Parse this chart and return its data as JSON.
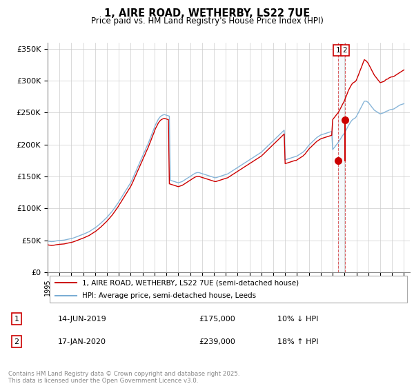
{
  "title": "1, AIRE ROAD, WETHERBY, LS22 7UE",
  "subtitle": "Price paid vs. HM Land Registry's House Price Index (HPI)",
  "ylim": [
    0,
    360000
  ],
  "yticks": [
    0,
    50000,
    100000,
    150000,
    200000,
    250000,
    300000,
    350000
  ],
  "ytick_labels": [
    "£0",
    "£50K",
    "£100K",
    "£150K",
    "£200K",
    "£250K",
    "£300K",
    "£350K"
  ],
  "legend_entries": [
    "1, AIRE ROAD, WETHERBY, LS22 7UE (semi-detached house)",
    "HPI: Average price, semi-detached house, Leeds"
  ],
  "line1_color": "#cc0000",
  "line2_color": "#7aadd4",
  "transaction1": {
    "num": 1,
    "date": "14-JUN-2019",
    "price": "£175,000",
    "change": "10% ↓ HPI"
  },
  "transaction2": {
    "num": 2,
    "date": "17-JAN-2020",
    "price": "£239,000",
    "change": "18% ↑ HPI"
  },
  "footnote": "Contains HM Land Registry data © Crown copyright and database right 2025.\nThis data is licensed under the Open Government Licence v3.0.",
  "marker1_x": 2019.44,
  "marker1_y": 175000,
  "marker2_x": 2020.04,
  "marker2_y": 239000,
  "xlim_start": 1995,
  "xlim_end": 2025.5,
  "hpi_x": [
    1995.0,
    1995.08,
    1995.17,
    1995.25,
    1995.33,
    1995.42,
    1995.5,
    1995.58,
    1995.67,
    1995.75,
    1995.83,
    1995.92,
    1996.0,
    1996.08,
    1996.17,
    1996.25,
    1996.33,
    1996.42,
    1996.5,
    1996.58,
    1996.67,
    1996.75,
    1996.83,
    1996.92,
    1997.0,
    1997.08,
    1997.17,
    1997.25,
    1997.33,
    1997.42,
    1997.5,
    1997.58,
    1997.67,
    1997.75,
    1997.83,
    1997.92,
    1998.0,
    1998.08,
    1998.17,
    1998.25,
    1998.33,
    1998.42,
    1998.5,
    1998.58,
    1998.67,
    1998.75,
    1998.83,
    1998.92,
    1999.0,
    1999.08,
    1999.17,
    1999.25,
    1999.33,
    1999.42,
    1999.5,
    1999.58,
    1999.67,
    1999.75,
    1999.83,
    1999.92,
    2000.0,
    2000.08,
    2000.17,
    2000.25,
    2000.33,
    2000.42,
    2000.5,
    2000.58,
    2000.67,
    2000.75,
    2000.83,
    2000.92,
    2001.0,
    2001.08,
    2001.17,
    2001.25,
    2001.33,
    2001.42,
    2001.5,
    2001.58,
    2001.67,
    2001.75,
    2001.83,
    2001.92,
    2002.0,
    2002.08,
    2002.17,
    2002.25,
    2002.33,
    2002.42,
    2002.5,
    2002.58,
    2002.67,
    2002.75,
    2002.83,
    2002.92,
    2003.0,
    2003.08,
    2003.17,
    2003.25,
    2003.33,
    2003.42,
    2003.5,
    2003.58,
    2003.67,
    2003.75,
    2003.83,
    2003.92,
    2004.0,
    2004.08,
    2004.17,
    2004.25,
    2004.33,
    2004.42,
    2004.5,
    2004.58,
    2004.67,
    2004.75,
    2004.83,
    2004.92,
    2005.0,
    2005.08,
    2005.17,
    2005.25,
    2005.33,
    2005.42,
    2005.5,
    2005.58,
    2005.67,
    2005.75,
    2005.83,
    2005.92,
    2006.0,
    2006.08,
    2006.17,
    2006.25,
    2006.33,
    2006.42,
    2006.5,
    2006.58,
    2006.67,
    2006.75,
    2006.83,
    2006.92,
    2007.0,
    2007.08,
    2007.17,
    2007.25,
    2007.33,
    2007.42,
    2007.5,
    2007.58,
    2007.67,
    2007.75,
    2007.83,
    2007.92,
    2008.0,
    2008.08,
    2008.17,
    2008.25,
    2008.33,
    2008.42,
    2008.5,
    2008.58,
    2008.67,
    2008.75,
    2008.83,
    2008.92,
    2009.0,
    2009.08,
    2009.17,
    2009.25,
    2009.33,
    2009.42,
    2009.5,
    2009.58,
    2009.67,
    2009.75,
    2009.83,
    2009.92,
    2010.0,
    2010.08,
    2010.17,
    2010.25,
    2010.33,
    2010.42,
    2010.5,
    2010.58,
    2010.67,
    2010.75,
    2010.83,
    2010.92,
    2011.0,
    2011.08,
    2011.17,
    2011.25,
    2011.33,
    2011.42,
    2011.5,
    2011.58,
    2011.67,
    2011.75,
    2011.83,
    2011.92,
    2012.0,
    2012.08,
    2012.17,
    2012.25,
    2012.33,
    2012.42,
    2012.5,
    2012.58,
    2012.67,
    2012.75,
    2012.83,
    2012.92,
    2013.0,
    2013.08,
    2013.17,
    2013.25,
    2013.33,
    2013.42,
    2013.5,
    2013.58,
    2013.67,
    2013.75,
    2013.83,
    2013.92,
    2014.0,
    2014.08,
    2014.17,
    2014.25,
    2014.33,
    2014.42,
    2014.5,
    2014.58,
    2014.67,
    2014.75,
    2014.83,
    2014.92,
    2015.0,
    2015.08,
    2015.17,
    2015.25,
    2015.33,
    2015.42,
    2015.5,
    2015.58,
    2015.67,
    2015.75,
    2015.83,
    2015.92,
    2016.0,
    2016.08,
    2016.17,
    2016.25,
    2016.33,
    2016.42,
    2016.5,
    2016.58,
    2016.67,
    2016.75,
    2016.83,
    2016.92,
    2017.0,
    2017.08,
    2017.17,
    2017.25,
    2017.33,
    2017.42,
    2017.5,
    2017.58,
    2017.67,
    2017.75,
    2017.83,
    2017.92,
    2018.0,
    2018.08,
    2018.17,
    2018.25,
    2018.33,
    2018.42,
    2018.5,
    2018.58,
    2018.67,
    2018.75,
    2018.83,
    2018.92,
    2019.0,
    2019.08,
    2019.17,
    2019.25,
    2019.33,
    2019.42,
    2019.5,
    2019.58,
    2019.67,
    2019.75,
    2019.83,
    2019.92,
    2020.0,
    2020.08,
    2020.17,
    2020.25,
    2020.33,
    2020.42,
    2020.5,
    2020.58,
    2020.67,
    2020.75,
    2020.83,
    2020.92,
    2021.0,
    2021.08,
    2021.17,
    2021.25,
    2021.33,
    2021.42,
    2021.5,
    2021.58,
    2021.67,
    2021.75,
    2021.83,
    2021.92,
    2022.0,
    2022.08,
    2022.17,
    2022.25,
    2022.33,
    2022.42,
    2022.5,
    2022.58,
    2022.67,
    2022.75,
    2022.83,
    2022.92,
    2023.0,
    2023.08,
    2023.17,
    2023.25,
    2023.33,
    2023.42,
    2023.5,
    2023.58,
    2023.67,
    2023.75,
    2023.83,
    2023.92,
    2024.0,
    2024.08,
    2024.17,
    2024.25,
    2024.33,
    2024.42,
    2024.5,
    2024.58,
    2024.67,
    2024.75,
    2024.83,
    2024.92,
    2025.0
  ],
  "hpi_y": [
    49000,
    48500,
    48200,
    48000,
    47800,
    47900,
    48100,
    48400,
    48700,
    49000,
    49200,
    49400,
    49600,
    49700,
    49800,
    49900,
    50100,
    50300,
    50600,
    51000,
    51400,
    51700,
    52000,
    52300,
    52600,
    53000,
    53500,
    54000,
    54600,
    55200,
    55800,
    56400,
    57000,
    57600,
    58200,
    58800,
    59400,
    60000,
    60700,
    61400,
    62100,
    62800,
    63500,
    64500,
    65500,
    66500,
    67500,
    68500,
    69500,
    70500,
    71800,
    73100,
    74400,
    75700,
    77000,
    78500,
    80000,
    81500,
    83000,
    84500,
    86000,
    87800,
    89600,
    91400,
    93200,
    95000,
    97000,
    99200,
    101400,
    103600,
    105800,
    108000,
    110500,
    113000,
    115500,
    118000,
    120500,
    123000,
    125500,
    128000,
    130500,
    133000,
    135500,
    138000,
    140500,
    143500,
    147000,
    150500,
    154000,
    157500,
    161000,
    164500,
    168000,
    171500,
    175000,
    178500,
    182000,
    185500,
    189000,
    192500,
    196000,
    199500,
    203000,
    207000,
    211000,
    215000,
    219000,
    223000,
    227000,
    231000,
    234000,
    237000,
    240000,
    242000,
    244000,
    245000,
    246000,
    246500,
    247000,
    246500,
    246000,
    245500,
    245000,
    244500,
    144000,
    143500,
    143000,
    142500,
    142000,
    141500,
    141000,
    140500,
    140000,
    140500,
    141000,
    141500,
    142000,
    143000,
    144000,
    145000,
    146000,
    147000,
    148000,
    149000,
    150000,
    151000,
    152000,
    153000,
    154000,
    155000,
    155500,
    156000,
    156000,
    156000,
    155500,
    155000,
    154500,
    154000,
    153500,
    153000,
    152500,
    152000,
    151500,
    151000,
    150500,
    150000,
    149500,
    149000,
    148500,
    148000,
    148000,
    148500,
    149000,
    149500,
    150000,
    150500,
    151000,
    151500,
    152000,
    152500,
    153000,
    153500,
    154000,
    155000,
    156000,
    157000,
    158000,
    159000,
    160000,
    161000,
    162000,
    163000,
    164000,
    165000,
    166000,
    167000,
    168000,
    169000,
    170000,
    171000,
    172000,
    173000,
    174000,
    175000,
    176000,
    177000,
    178000,
    179000,
    180000,
    181000,
    182000,
    183000,
    184000,
    185000,
    186000,
    187000,
    188000,
    189500,
    191000,
    192500,
    194000,
    195500,
    197000,
    198500,
    200000,
    201500,
    203000,
    204500,
    206000,
    207500,
    209000,
    210500,
    212000,
    213500,
    215000,
    216500,
    218000,
    219500,
    221000,
    222500,
    176000,
    176500,
    177000,
    177500,
    178000,
    178500,
    179000,
    179500,
    180000,
    180500,
    181000,
    181500,
    182000,
    183000,
    184000,
    185000,
    186000,
    187000,
    188000,
    189500,
    191000,
    193000,
    195000,
    197000,
    199000,
    200500,
    202000,
    203500,
    205000,
    206500,
    208000,
    209500,
    211000,
    212000,
    213000,
    214000,
    215000,
    215500,
    216000,
    216500,
    217000,
    217500,
    218000,
    218500,
    219000,
    219500,
    220000,
    220500,
    192000,
    194000,
    196000,
    198000,
    200000,
    202000,
    204000,
    206500,
    209000,
    211500,
    214000,
    216000,
    218000,
    221000,
    224000,
    227000,
    230000,
    232500,
    235000,
    237000,
    239000,
    240000,
    241000,
    242000,
    244000,
    247000,
    250000,
    253000,
    256000,
    259000,
    262000,
    265000,
    268000,
    268000,
    268000,
    267000,
    266000,
    264000,
    262000,
    260000,
    258000,
    256000,
    254000,
    253000,
    252000,
    251000,
    250000,
    249000,
    248000,
    248500,
    249000,
    249500,
    250000,
    251000,
    252000,
    252500,
    253000,
    254000,
    254500,
    255000,
    255000,
    255500,
    256000,
    257000,
    258000,
    259000,
    260000,
    261000,
    262000,
    262500,
    263000,
    263500,
    264000,
    263000,
    262000,
    261000,
    260000,
    260500,
    261000,
    261500,
    262000,
    262500,
    263000,
    263500,
    264000
  ],
  "red_y": [
    43000,
    42500,
    42200,
    42000,
    41800,
    41900,
    42100,
    42400,
    42700,
    43000,
    43200,
    43400,
    43600,
    43700,
    43800,
    43900,
    44100,
    44300,
    44600,
    45000,
    45400,
    45700,
    46000,
    46300,
    46600,
    47000,
    47500,
    48000,
    48600,
    49200,
    49800,
    50400,
    51000,
    51600,
    52200,
    52800,
    53400,
    54000,
    54700,
    55400,
    56100,
    56800,
    57500,
    58500,
    59500,
    60500,
    61500,
    62500,
    63500,
    64500,
    65800,
    67100,
    68400,
    69700,
    71000,
    72500,
    74000,
    75500,
    77000,
    78500,
    80000,
    81800,
    83600,
    85400,
    87200,
    89000,
    91000,
    93200,
    95400,
    97600,
    99800,
    102000,
    104500,
    107000,
    109500,
    112000,
    114500,
    117000,
    119500,
    122000,
    124500,
    127000,
    129500,
    132000,
    134500,
    137500,
    141000,
    144500,
    148000,
    151500,
    155000,
    158500,
    162000,
    165500,
    169000,
    172500,
    176000,
    179500,
    183000,
    186500,
    190000,
    193500,
    197000,
    201000,
    205000,
    209000,
    213000,
    217000,
    221000,
    225000,
    228000,
    231000,
    234000,
    236000,
    238000,
    239000,
    240000,
    240500,
    241000,
    240500,
    240000,
    239500,
    239000,
    138500,
    138000,
    137500,
    137000,
    136500,
    136000,
    135500,
    135000,
    134500,
    134000,
    134500,
    135000,
    135500,
    136000,
    137000,
    138000,
    139000,
    140000,
    141000,
    142000,
    143000,
    144000,
    145000,
    146000,
    147000,
    148000,
    149000,
    149500,
    150000,
    150000,
    150000,
    149500,
    149000,
    148500,
    148000,
    147500,
    147000,
    146500,
    146000,
    145500,
    145000,
    144500,
    144000,
    143500,
    143000,
    142500,
    142000,
    142000,
    142500,
    143000,
    143500,
    144000,
    144500,
    145000,
    145500,
    146000,
    146500,
    147000,
    147500,
    148000,
    149000,
    150000,
    151000,
    152000,
    153000,
    154000,
    155000,
    156000,
    157000,
    158000,
    159000,
    160000,
    161000,
    162000,
    163000,
    164000,
    165000,
    166000,
    167000,
    168000,
    169000,
    170000,
    171000,
    172000,
    173000,
    174000,
    175000,
    176000,
    177000,
    178000,
    179000,
    180000,
    181000,
    182000,
    183500,
    185000,
    186500,
    188000,
    189500,
    191000,
    192500,
    194000,
    195500,
    197000,
    198500,
    200000,
    201500,
    203000,
    204500,
    206000,
    207500,
    209000,
    210500,
    212000,
    213500,
    215000,
    216500,
    170000,
    170500,
    171000,
    171500,
    172000,
    172500,
    173000,
    173500,
    174000,
    174500,
    175000,
    175000,
    176000,
    177000,
    178000,
    179000,
    180000,
    181000,
    182000,
    183500,
    185000,
    187000,
    189000,
    191000,
    193000,
    194500,
    196000,
    197500,
    199000,
    200500,
    202000,
    203500,
    205000,
    206000,
    207000,
    208000,
    209000,
    209500,
    210000,
    210500,
    211000,
    211500,
    212000,
    212500,
    213000,
    213500,
    214000,
    214500,
    239000,
    241000,
    243000,
    245000,
    247000,
    249000,
    251000,
    254000,
    257000,
    260000,
    263000,
    266000,
    269000,
    273000,
    277000,
    281000,
    285000,
    288000,
    291000,
    293500,
    296000,
    297000,
    298000,
    299000,
    301000,
    305000,
    309000,
    313000,
    317000,
    321000,
    325000,
    329000,
    333000,
    332000,
    331000,
    329000,
    327000,
    324000,
    321000,
    318000,
    315000,
    312000,
    309000,
    307000,
    305000,
    303000,
    301000,
    299000,
    297000,
    297500,
    298000,
    298500,
    299000,
    300500,
    302000,
    302500,
    303000,
    304500,
    305000,
    306000,
    306000,
    306500,
    307000,
    308000,
    309000,
    310000,
    311000,
    312000,
    313000,
    314000,
    315000,
    316000,
    317000,
    316000,
    315000,
    314000,
    313000,
    313500,
    314000,
    314500,
    315000,
    315500,
    316000,
    316500,
    317000
  ]
}
